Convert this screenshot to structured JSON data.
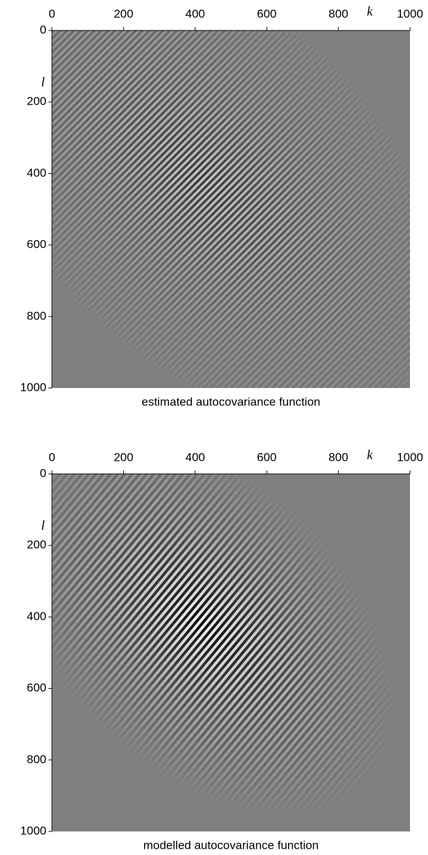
{
  "chart_data": [
    {
      "type": "heatmap",
      "title": "estimated autocovariance function",
      "xlabel": "k",
      "ylabel": "l",
      "xlim": [
        0,
        1000
      ],
      "ylim": [
        0,
        1000
      ],
      "y_inverted": true,
      "xticks": [
        0,
        200,
        400,
        600,
        800,
        1000
      ],
      "yticks": [
        0,
        200,
        400,
        600,
        800,
        1000
      ]
    },
    {
      "type": "heatmap",
      "title": "modelled autocovariance function",
      "xlabel": "k",
      "ylabel": "l",
      "xlim": [
        0,
        1000
      ],
      "ylim": [
        0,
        1000
      ],
      "y_inverted": true,
      "xticks": [
        0,
        200,
        400,
        600,
        800,
        1000
      ],
      "yticks": [
        0,
        200,
        400,
        600,
        800,
        1000
      ]
    }
  ]
}
